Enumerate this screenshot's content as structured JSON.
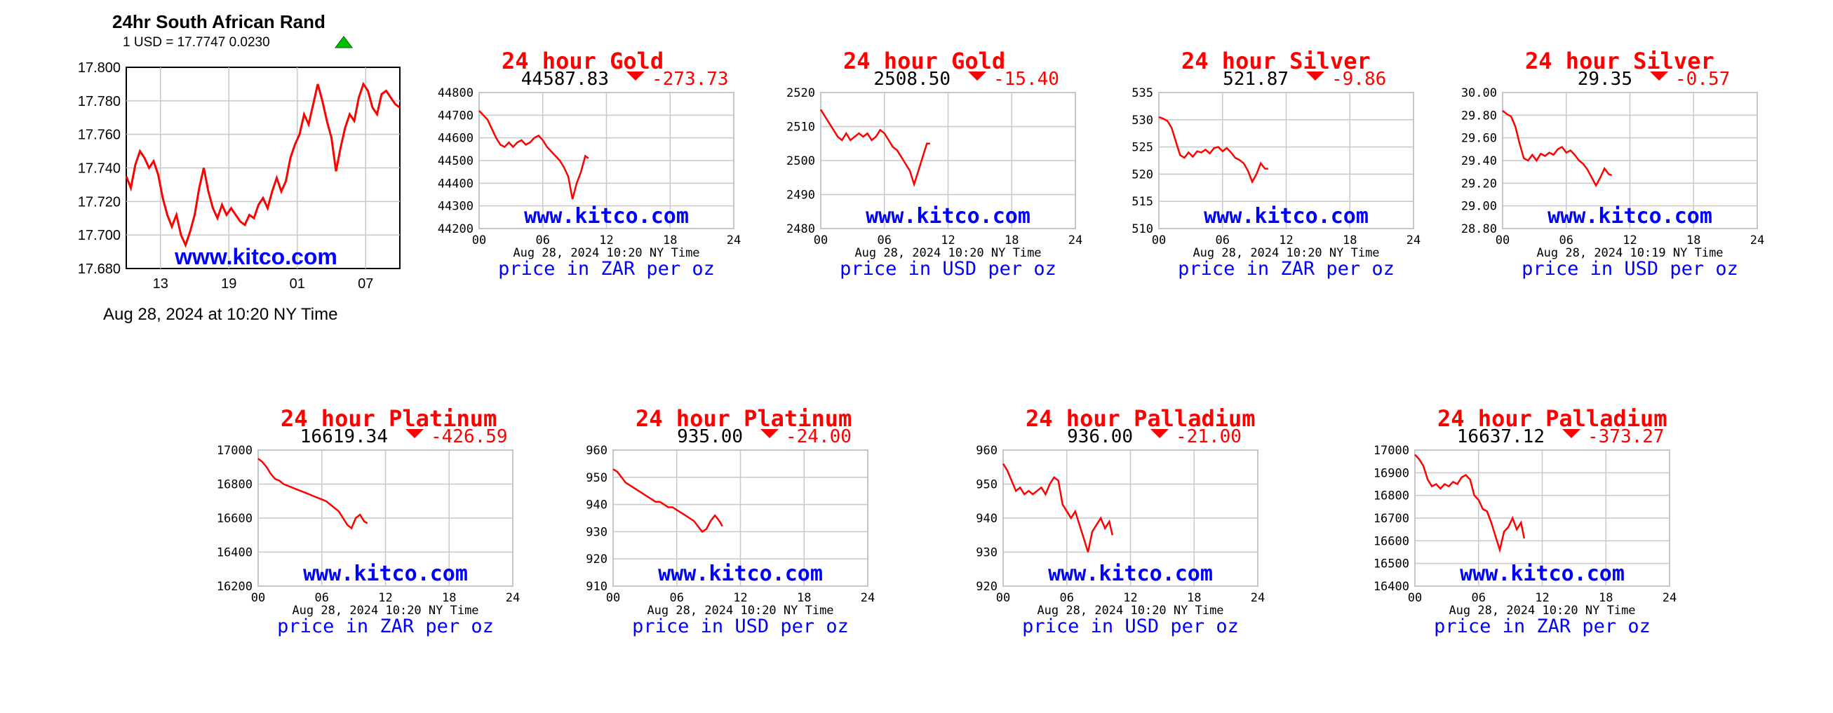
{
  "zar": {
    "title": "24hr South African Rand",
    "quote": "1 USD = 17.7747  0.0230",
    "date_line": "Aug 28, 2024 at 10:20 NY Time",
    "watermark": "www.kitco.com",
    "up_color": "#00c000",
    "chart_data": {
      "type": "line",
      "title": "24hr South African Rand",
      "yticks": [
        "17.800",
        "17.780",
        "17.760",
        "17.740",
        "17.720",
        "17.700",
        "17.680"
      ],
      "ylim": [
        17.68,
        17.8
      ],
      "xticks": [
        "13",
        "19",
        "01",
        "07"
      ],
      "xlim": [
        10,
        34
      ],
      "grid": true,
      "series": [
        {
          "x": [
            10,
            10.4,
            10.8,
            11.2,
            11.6,
            12,
            12.4,
            12.8,
            13.2,
            13.6,
            14,
            14.4,
            14.8,
            15.2,
            15.6,
            16,
            16.4,
            16.8,
            17.2,
            17.6,
            18,
            18.4,
            18.8,
            19.2,
            19.6,
            20,
            20.4,
            20.8,
            21.2,
            21.6,
            22,
            22.4,
            22.8,
            23.2,
            23.6,
            24,
            24.4,
            24.8,
            25.2,
            25.6,
            26,
            26.4,
            26.8,
            27.2,
            27.6,
            28,
            28.4,
            28.8,
            29.2,
            29.6,
            30,
            30.4,
            30.8,
            31.2,
            31.6,
            32,
            32.4,
            32.8,
            33.2,
            33.6,
            34
          ],
          "y": [
            17.735,
            17.728,
            17.742,
            17.75,
            17.746,
            17.74,
            17.744,
            17.736,
            17.722,
            17.712,
            17.705,
            17.712,
            17.7,
            17.694,
            17.702,
            17.712,
            17.728,
            17.74,
            17.726,
            17.716,
            17.71,
            17.718,
            17.712,
            17.716,
            17.712,
            17.708,
            17.706,
            17.712,
            17.71,
            17.718,
            17.722,
            17.716,
            17.726,
            17.734,
            17.726,
            17.732,
            17.746,
            17.754,
            17.76,
            17.772,
            17.766,
            17.778,
            17.79,
            17.78,
            17.768,
            17.758,
            17.738,
            17.752,
            17.764,
            17.772,
            17.768,
            17.782,
            17.79,
            17.786,
            17.776,
            17.772,
            17.784,
            17.786,
            17.782,
            17.778,
            17.776
          ]
        }
      ]
    }
  },
  "panels": [
    {
      "title": "24 hour Gold",
      "price": "44587.83",
      "change": "-273.73",
      "date_line": "Aug 28, 2024 10:20 NY Time",
      "unit_line": "price in ZAR per oz",
      "watermark": "www.kitco.com",
      "chart_data": {
        "type": "line",
        "yticks": [
          "44800",
          "44700",
          "44600",
          "44500",
          "44400",
          "44300",
          "44200"
        ],
        "ylim": [
          44200,
          44800
        ],
        "xticks": [
          "00",
          "06",
          "12",
          "18",
          "24"
        ],
        "xlim": [
          0,
          24
        ],
        "grid": true,
        "series": [
          {
            "x": [
              0,
              0.4,
              0.8,
              1.2,
              1.6,
              2,
              2.4,
              2.8,
              3.2,
              3.6,
              4,
              4.4,
              4.8,
              5.2,
              5.6,
              6,
              6.4,
              6.8,
              7.2,
              7.6,
              8,
              8.4,
              8.8,
              9.2,
              9.6,
              10,
              10.3
            ],
            "y": [
              44720,
              44700,
              44680,
              44640,
              44600,
              44570,
              44560,
              44580,
              44560,
              44580,
              44590,
              44570,
              44580,
              44600,
              44610,
              44590,
              44560,
              44540,
              44520,
              44500,
              44470,
              44430,
              44330,
              44400,
              44450,
              44520,
              44510
            ]
          }
        ]
      }
    },
    {
      "title": "24 hour Gold",
      "price": "2508.50",
      "change": "-15.40",
      "date_line": "Aug 28, 2024 10:20 NY Time",
      "unit_line": "price in USD per oz",
      "watermark": "www.kitco.com",
      "chart_data": {
        "type": "line",
        "yticks": [
          "2520",
          "2510",
          "2500",
          "2490",
          "2480"
        ],
        "ylim": [
          2480,
          2520
        ],
        "xticks": [
          "00",
          "06",
          "12",
          "18",
          "24"
        ],
        "xlim": [
          0,
          24
        ],
        "grid": true,
        "series": [
          {
            "x": [
              0,
              0.4,
              0.8,
              1.2,
              1.6,
              2,
              2.4,
              2.8,
              3.2,
              3.6,
              4,
              4.4,
              4.8,
              5.2,
              5.6,
              6,
              6.4,
              6.8,
              7.2,
              7.6,
              8,
              8.4,
              8.8,
              9.2,
              9.6,
              10,
              10.3
            ],
            "y": [
              2515,
              2513,
              2511,
              2509,
              2507,
              2506,
              2508,
              2506,
              2507,
              2508,
              2507,
              2508,
              2506,
              2507,
              2509,
              2508,
              2506,
              2504,
              2503,
              2501,
              2499,
              2497,
              2493,
              2497,
              2501,
              2505,
              2505
            ]
          }
        ]
      }
    },
    {
      "title": "24 hour Silver",
      "price": "521.87",
      "change": "-9.86",
      "date_line": "Aug 28, 2024 10:20 NY Time",
      "unit_line": "price in ZAR per oz",
      "watermark": "www.kitco.com",
      "chart_data": {
        "type": "line",
        "yticks": [
          "535",
          "530",
          "525",
          "520",
          "515",
          "510"
        ],
        "ylim": [
          510,
          535
        ],
        "xticks": [
          "00",
          "06",
          "12",
          "18",
          "24"
        ],
        "xlim": [
          0,
          24
        ],
        "grid": true,
        "series": [
          {
            "x": [
              0,
              0.4,
              0.8,
              1.2,
              1.6,
              2,
              2.4,
              2.8,
              3.2,
              3.6,
              4,
              4.4,
              4.8,
              5.2,
              5.6,
              6,
              6.4,
              6.8,
              7.2,
              7.6,
              8,
              8.4,
              8.8,
              9.2,
              9.6,
              10,
              10.3
            ],
            "y": [
              530.5,
              530.2,
              529.8,
              528.5,
              526,
              523.5,
              523,
              524,
              523.2,
              524.2,
              524,
              524.5,
              523.8,
              524.8,
              525,
              524.2,
              524.8,
              524,
              523,
              522.6,
              522,
              520.6,
              518.6,
              520,
              522,
              521,
              521
            ]
          }
        ]
      }
    },
    {
      "title": "24 hour Silver",
      "price": "29.35",
      "change": "-0.57",
      "date_line": "Aug 28, 2024 10:19 NY Time",
      "unit_line": "price in USD per oz",
      "watermark": "www.kitco.com",
      "chart_data": {
        "type": "line",
        "yticks": [
          "30.00",
          "29.80",
          "29.60",
          "29.40",
          "29.20",
          "29.00",
          "28.80"
        ],
        "ylim": [
          28.8,
          30.0
        ],
        "xticks": [
          "00",
          "06",
          "12",
          "18",
          "24"
        ],
        "xlim": [
          0,
          24
        ],
        "grid": true,
        "series": [
          {
            "x": [
              0,
              0.4,
              0.8,
              1.2,
              1.6,
              2,
              2.4,
              2.8,
              3.2,
              3.6,
              4,
              4.4,
              4.8,
              5.2,
              5.6,
              6,
              6.4,
              6.8,
              7.2,
              7.6,
              8,
              8.4,
              8.8,
              9.2,
              9.6,
              10,
              10.3
            ],
            "y": [
              29.84,
              29.81,
              29.79,
              29.7,
              29.55,
              29.42,
              29.4,
              29.45,
              29.4,
              29.46,
              29.44,
              29.47,
              29.45,
              29.5,
              29.52,
              29.47,
              29.49,
              29.45,
              29.4,
              29.37,
              29.32,
              29.25,
              29.18,
              29.25,
              29.33,
              29.28,
              29.27
            ]
          }
        ]
      }
    },
    {
      "title": "24 hour Platinum",
      "price": "16619.34",
      "change": "-426.59",
      "date_line": "Aug 28, 2024 10:20 NY Time",
      "unit_line": "price in ZAR per oz",
      "watermark": "www.kitco.com",
      "chart_data": {
        "type": "line",
        "yticks": [
          "17000",
          "16800",
          "16600",
          "16400",
          "16200"
        ],
        "ylim": [
          16200,
          17000
        ],
        "xticks": [
          "00",
          "06",
          "12",
          "18",
          "24"
        ],
        "xlim": [
          0,
          24
        ],
        "grid": true,
        "series": [
          {
            "x": [
              0,
              0.4,
              0.8,
              1.2,
              1.6,
              2,
              2.4,
              2.8,
              3.2,
              3.6,
              4,
              4.4,
              4.8,
              5.2,
              5.6,
              6,
              6.4,
              6.8,
              7.2,
              7.6,
              8,
              8.4,
              8.8,
              9.2,
              9.6,
              10,
              10.3
            ],
            "y": [
              16950,
              16930,
              16900,
              16860,
              16830,
              16820,
              16800,
              16790,
              16780,
              16770,
              16760,
              16750,
              16740,
              16730,
              16720,
              16710,
              16700,
              16680,
              16660,
              16640,
              16600,
              16560,
              16540,
              16600,
              16620,
              16580,
              16570
            ]
          }
        ]
      }
    },
    {
      "title": "24 hour Platinum",
      "price": "935.00",
      "change": "-24.00",
      "date_line": "Aug 28, 2024 10:20 NY Time",
      "unit_line": "price in USD per oz",
      "watermark": "www.kitco.com",
      "chart_data": {
        "type": "line",
        "yticks": [
          "960",
          "950",
          "940",
          "930",
          "920",
          "910"
        ],
        "ylim": [
          910,
          960
        ],
        "xticks": [
          "00",
          "06",
          "12",
          "18",
          "24"
        ],
        "xlim": [
          0,
          24
        ],
        "grid": true,
        "series": [
          {
            "x": [
              0,
              0.4,
              0.8,
              1.2,
              1.6,
              2,
              2.4,
              2.8,
              3.2,
              3.6,
              4,
              4.4,
              4.8,
              5.2,
              5.6,
              6,
              6.4,
              6.8,
              7.2,
              7.6,
              8,
              8.4,
              8.8,
              9.2,
              9.6,
              10,
              10.3
            ],
            "y": [
              953,
              952,
              950,
              948,
              947,
              946,
              945,
              944,
              943,
              942,
              941,
              941,
              940,
              939,
              939,
              938,
              937,
              936,
              935,
              934,
              932,
              930,
              931,
              934,
              936,
              934,
              932
            ]
          }
        ]
      }
    },
    {
      "title": "24 hour Palladium",
      "price": "936.00",
      "change": "-21.00",
      "date_line": "Aug 28, 2024 10:20 NY Time",
      "unit_line": "price in USD per oz",
      "watermark": "www.kitco.com",
      "chart_data": {
        "type": "line",
        "yticks": [
          "960",
          "950",
          "940",
          "930",
          "920"
        ],
        "ylim": [
          920,
          960
        ],
        "xticks": [
          "00",
          "06",
          "12",
          "18",
          "24"
        ],
        "xlim": [
          0,
          24
        ],
        "grid": true,
        "series": [
          {
            "x": [
              0,
              0.4,
              0.8,
              1.2,
              1.6,
              2,
              2.4,
              2.8,
              3.2,
              3.6,
              4,
              4.4,
              4.8,
              5.2,
              5.6,
              6,
              6.4,
              6.8,
              7.2,
              7.6,
              8,
              8.4,
              8.8,
              9.2,
              9.6,
              10,
              10.3
            ],
            "y": [
              956,
              954,
              951,
              948,
              949,
              947,
              948,
              947,
              948,
              949,
              947,
              950,
              952,
              951,
              944,
              942,
              940,
              942,
              938,
              934,
              930,
              936,
              938,
              940,
              937,
              939,
              935
            ]
          }
        ]
      }
    },
    {
      "title": "24 hour Palladium",
      "price": "16637.12",
      "change": "-373.27",
      "date_line": "Aug 28, 2024 10:20 NY Time",
      "unit_line": "price in ZAR per oz",
      "watermark": "www.kitco.com",
      "chart_data": {
        "type": "line",
        "yticks": [
          "17000",
          "16900",
          "16800",
          "16700",
          "16600",
          "16500",
          "16400"
        ],
        "ylim": [
          16400,
          17000
        ],
        "xticks": [
          "00",
          "06",
          "12",
          "18",
          "24"
        ],
        "xlim": [
          0,
          24
        ],
        "grid": true,
        "series": [
          {
            "x": [
              0,
              0.4,
              0.8,
              1.2,
              1.6,
              2,
              2.4,
              2.8,
              3.2,
              3.6,
              4,
              4.4,
              4.8,
              5.2,
              5.6,
              6,
              6.4,
              6.8,
              7.2,
              7.6,
              8,
              8.4,
              8.8,
              9.2,
              9.6,
              10,
              10.3
            ],
            "y": [
              16980,
              16960,
              16930,
              16870,
              16840,
              16850,
              16830,
              16850,
              16840,
              16860,
              16850,
              16880,
              16890,
              16870,
              16800,
              16780,
              16740,
              16730,
              16680,
              16620,
              16560,
              16640,
              16660,
              16700,
              16650,
              16680,
              16610
            ]
          }
        ]
      }
    }
  ]
}
